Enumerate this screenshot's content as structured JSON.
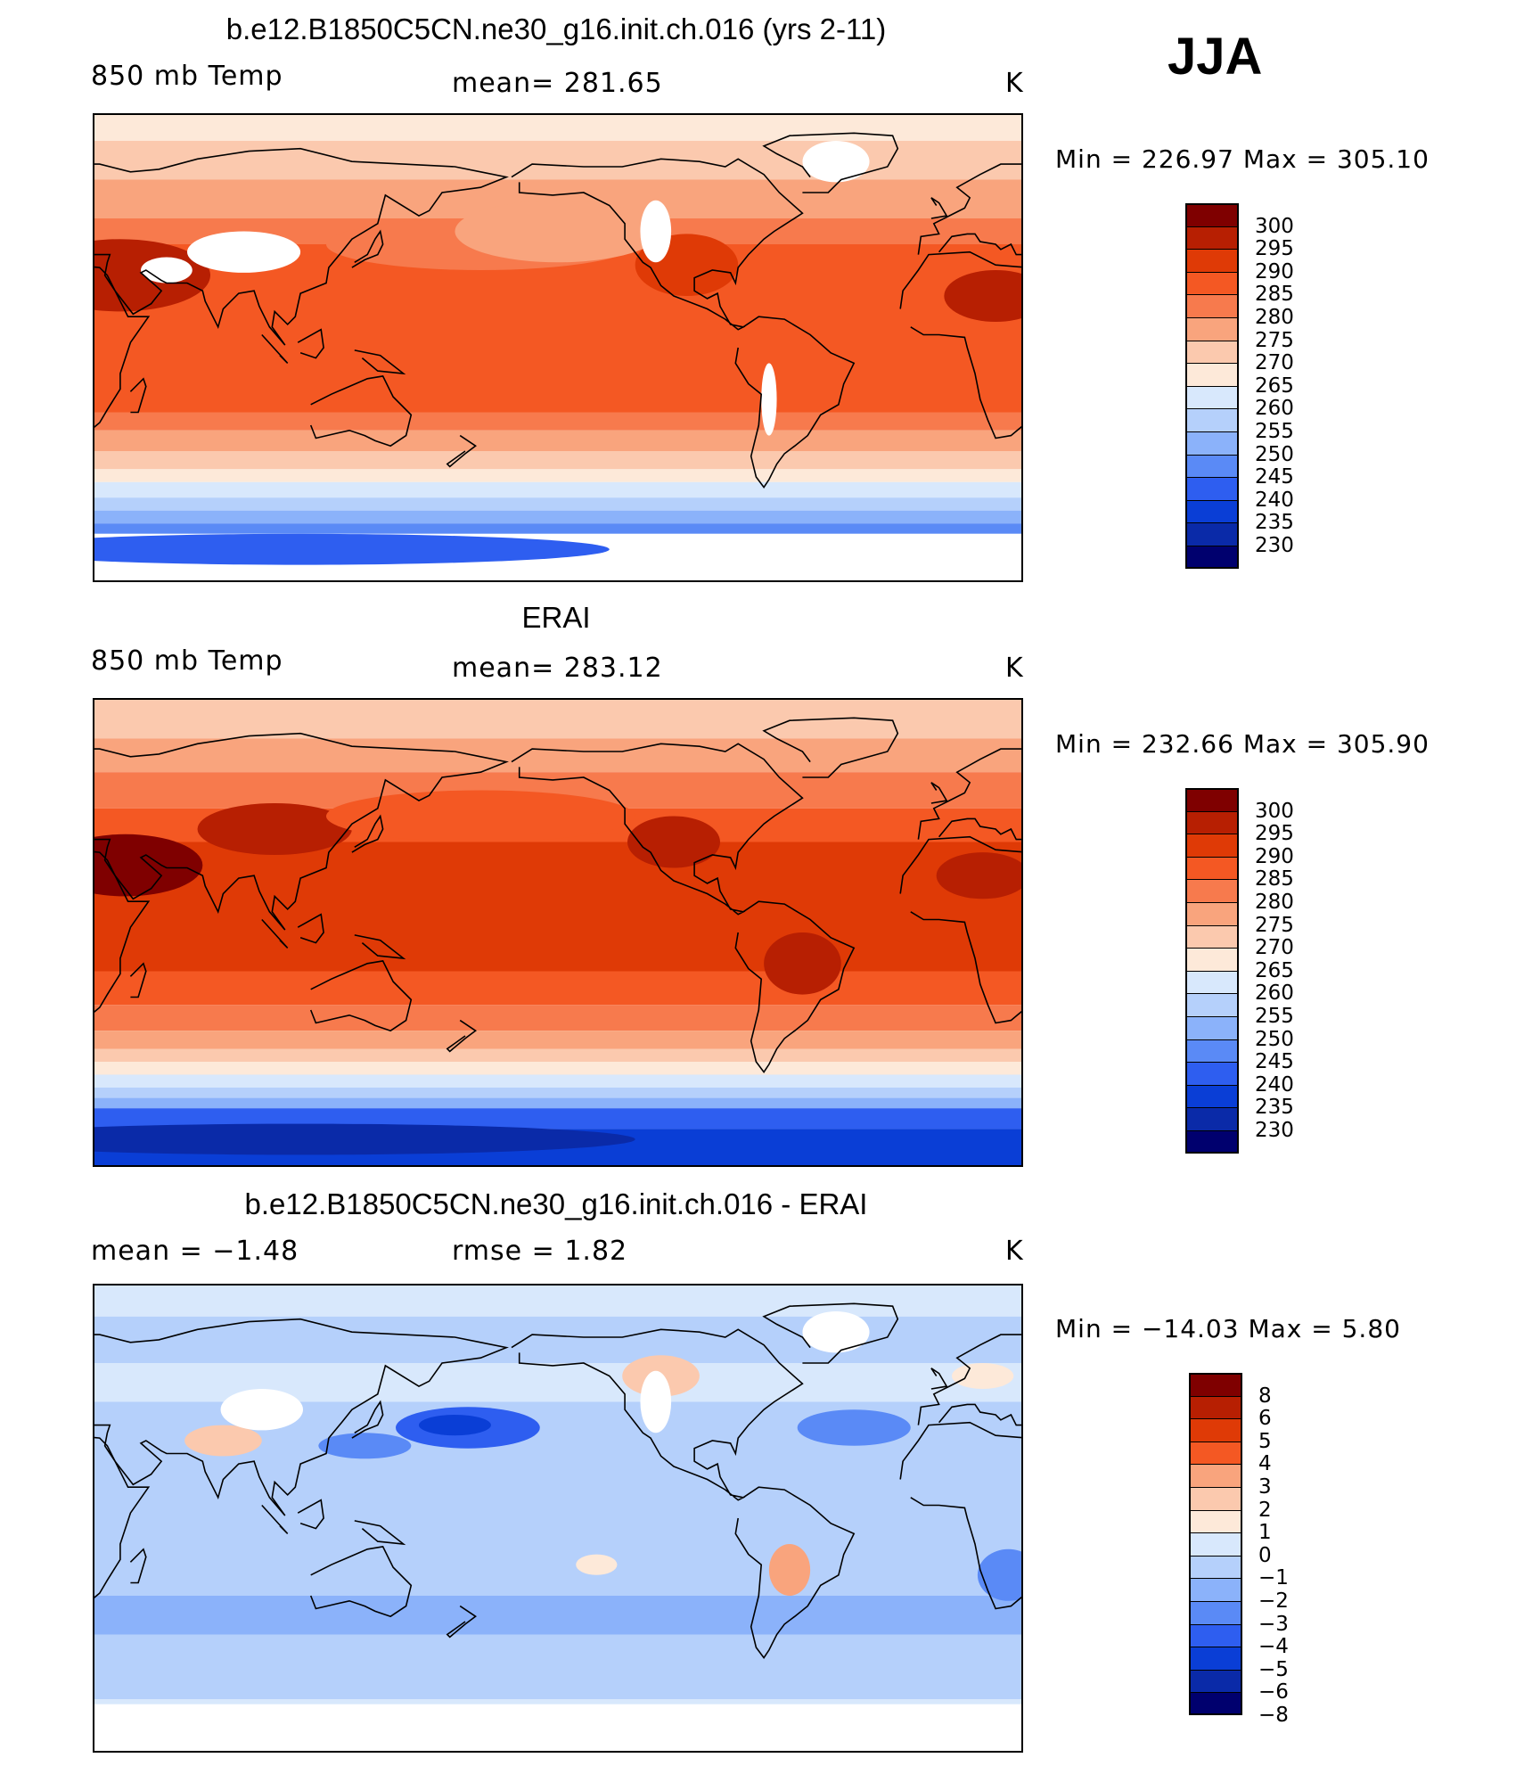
{
  "season": "JJA",
  "colors": {
    "abs_palette": [
      "#00006e",
      "#0a2aa8",
      "#0a3ed6",
      "#2e5ef0",
      "#5a8af6",
      "#8bb2fa",
      "#b5d0fb",
      "#d8e8fc",
      "#fde9d9",
      "#fbc9ae",
      "#f9a47d",
      "#f77a4d",
      "#f45823",
      "#df3a06",
      "#b71f02",
      "#7f0000"
    ],
    "diff_palette": [
      "#00006e",
      "#0a2aa8",
      "#0a3ed6",
      "#2e5ef0",
      "#5a8af6",
      "#8bb2fa",
      "#b5d0fb",
      "#d8e8fc",
      "#fde9d9",
      "#fbc9ae",
      "#f9a47d",
      "#f45823",
      "#df3a06",
      "#b71f02",
      "#7f0000"
    ]
  },
  "panels": [
    {
      "title": "b.e12.B1850C5CN.ne30_g16.init.ch.016 (yrs 2-11)",
      "left": "850 mb Temp",
      "center": "mean=  281.65",
      "units": "K",
      "minmax": "Min  =  226.97  Max  =  305.10",
      "kind": "model",
      "colorbar_labels": [
        "300",
        "295",
        "290",
        "285",
        "280",
        "275",
        "270",
        "265",
        "260",
        "255",
        "250",
        "245",
        "240",
        "235",
        "230"
      ]
    },
    {
      "title": "ERAI",
      "left": "850 mb Temp",
      "center": "mean=  283.12",
      "units": "K",
      "minmax": "Min  =  232.66  Max  =  305.90",
      "kind": "obs",
      "colorbar_labels": [
        "300",
        "295",
        "290",
        "285",
        "280",
        "275",
        "270",
        "265",
        "260",
        "255",
        "250",
        "245",
        "240",
        "235",
        "230"
      ]
    },
    {
      "title": "b.e12.B1850C5CN.ne30_g16.init.ch.016 - ERAI",
      "left": "mean  =    −1.48",
      "center": "rmse  =     1.82",
      "units": "K",
      "minmax": "Min  =  −14.03  Max  =     5.80",
      "kind": "diff",
      "colorbar_labels": [
        "8",
        "6",
        "5",
        "4",
        "3",
        "2",
        "1",
        "0",
        "−1",
        "−2",
        "−3",
        "−4",
        "−5",
        "−6",
        "−8"
      ]
    }
  ]
}
